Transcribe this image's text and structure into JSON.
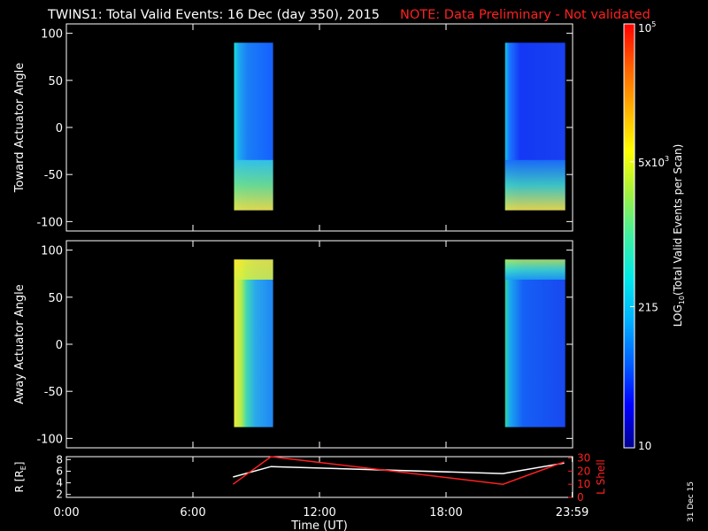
{
  "header": {
    "title": "TWINS1: Total Valid Events: 16 Dec (day 350), 2015",
    "note": "NOTE: Data Preliminary - Not validated"
  },
  "side_stamp": "31 Dec 15",
  "colors": {
    "note": "#ff2020",
    "trace_r": "#ffffff",
    "trace_l": "#ff2020",
    "background": "#000000"
  },
  "chart_data": [
    {
      "type": "heatmap",
      "panel": "toward",
      "ylabel": "Toward Actuator Angle",
      "ylim": [
        -110,
        110
      ],
      "yticks": [
        100,
        50,
        0,
        -50,
        -100
      ],
      "xlim": [
        0,
        24
      ],
      "blocks": [
        {
          "t_start": 7.95,
          "t_end": 9.8,
          "angle_min": -88,
          "angle_max": 90,
          "stops": [
            [
              0.0,
              "#16e0d8"
            ],
            [
              0.12,
              "#1da8f0"
            ],
            [
              0.35,
              "#1a7ef5"
            ],
            [
              1.0,
              "#1560ff"
            ]
          ],
          "bottom_stops": [
            [
              0.0,
              "#f4e23c"
            ],
            [
              0.5,
              "#70e28a"
            ],
            [
              1.0,
              "#34c8e6"
            ]
          ]
        },
        {
          "t_start": 20.8,
          "t_end": 23.65,
          "angle_min": -88,
          "angle_max": 90,
          "stops": [
            [
              0.0,
              "#10c8e0"
            ],
            [
              0.07,
              "#1b78ff"
            ],
            [
              0.25,
              "#1438f5"
            ],
            [
              1.0,
              "#1840f0"
            ]
          ],
          "bottom_stops": [
            [
              0.0,
              "#f4e23c"
            ],
            [
              0.5,
              "#40d0c0"
            ],
            [
              1.0,
              "#1a6ef8"
            ]
          ]
        }
      ]
    },
    {
      "type": "heatmap",
      "panel": "away",
      "ylabel": "Away Actuator Angle",
      "ylim": [
        -110,
        110
      ],
      "yticks": [
        100,
        50,
        0,
        -50,
        -100
      ],
      "xlim": [
        0,
        24
      ],
      "blocks": [
        {
          "t_start": 7.95,
          "t_end": 9.8,
          "angle_min": -88,
          "angle_max": 90,
          "stops": [
            [
              0.0,
              "#ece83a"
            ],
            [
              0.18,
              "#b6ec4a"
            ],
            [
              0.32,
              "#40d8b0"
            ],
            [
              0.55,
              "#2aa8ec"
            ],
            [
              1.0,
              "#1e86f4"
            ]
          ],
          "top_stops": [
            [
              0.0,
              "#f8e830"
            ],
            [
              1.0,
              "#d8f040"
            ]
          ]
        },
        {
          "t_start": 20.8,
          "t_end": 23.65,
          "angle_min": -88,
          "angle_max": 90,
          "stops": [
            [
              0.0,
              "#30d8a0"
            ],
            [
              0.08,
              "#1aa8f0"
            ],
            [
              0.3,
              "#1560f5"
            ],
            [
              1.0,
              "#1848f0"
            ]
          ],
          "top_stops": [
            [
              0.0,
              "#b8ec50"
            ],
            [
              0.5,
              "#40dcc8"
            ],
            [
              1.0,
              "#1aa0f0"
            ]
          ]
        }
      ]
    },
    {
      "type": "line",
      "panel": "ephemeris",
      "ylabel": "R [RE]",
      "ylabel_main": "R [R",
      "ylabel_sub": "E",
      "ylabel_end": "]",
      "ylim": [
        1.5,
        8.5
      ],
      "yticks": [
        8,
        6,
        4,
        2
      ],
      "ylabel_right": "L Shell",
      "ylim_right": [
        0,
        31
      ],
      "yticks_right": [
        30,
        20,
        10,
        0
      ],
      "xlim": [
        0,
        24
      ],
      "xlabel": "Time (UT)",
      "xticks": [
        {
          "value": 0,
          "label": "0:00"
        },
        {
          "value": 6,
          "label": "6:00"
        },
        {
          "value": 12,
          "label": "12:00"
        },
        {
          "value": 18,
          "label": "18:00"
        },
        {
          "value": 23.98,
          "label": "23:59"
        }
      ],
      "series": [
        {
          "name": "R",
          "axis": "left",
          "color": "#ffffff",
          "x": [
            7.9,
            9.7,
            20.7,
            23.6
          ],
          "y": [
            5.0,
            6.8,
            5.6,
            7.4
          ]
        },
        {
          "name": "L Shell",
          "axis": "right",
          "color": "#ff2020",
          "x": [
            7.9,
            9.7,
            20.7,
            23.6
          ],
          "y": [
            10,
            31,
            10,
            27
          ]
        }
      ]
    }
  ],
  "colorbar": {
    "label": "LOG",
    "label_sub": "10",
    "label_rest": "(Total Valid Events per Scan)",
    "scale": "log",
    "range": [
      10,
      100000
    ],
    "ticks": [
      {
        "value": 100000,
        "base": "10",
        "sup": "5"
      },
      {
        "value": 5000,
        "base": "5x10",
        "sup": "3"
      },
      {
        "value": 215,
        "base": "215",
        "sup": ""
      },
      {
        "value": 10,
        "base": "10",
        "sup": ""
      }
    ],
    "colors": [
      "#000090",
      "#0000ff",
      "#0060ff",
      "#00b0ff",
      "#00e8e8",
      "#40f0a0",
      "#a0f040",
      "#ffff00",
      "#ffb000",
      "#ff6000",
      "#ff0000"
    ]
  }
}
